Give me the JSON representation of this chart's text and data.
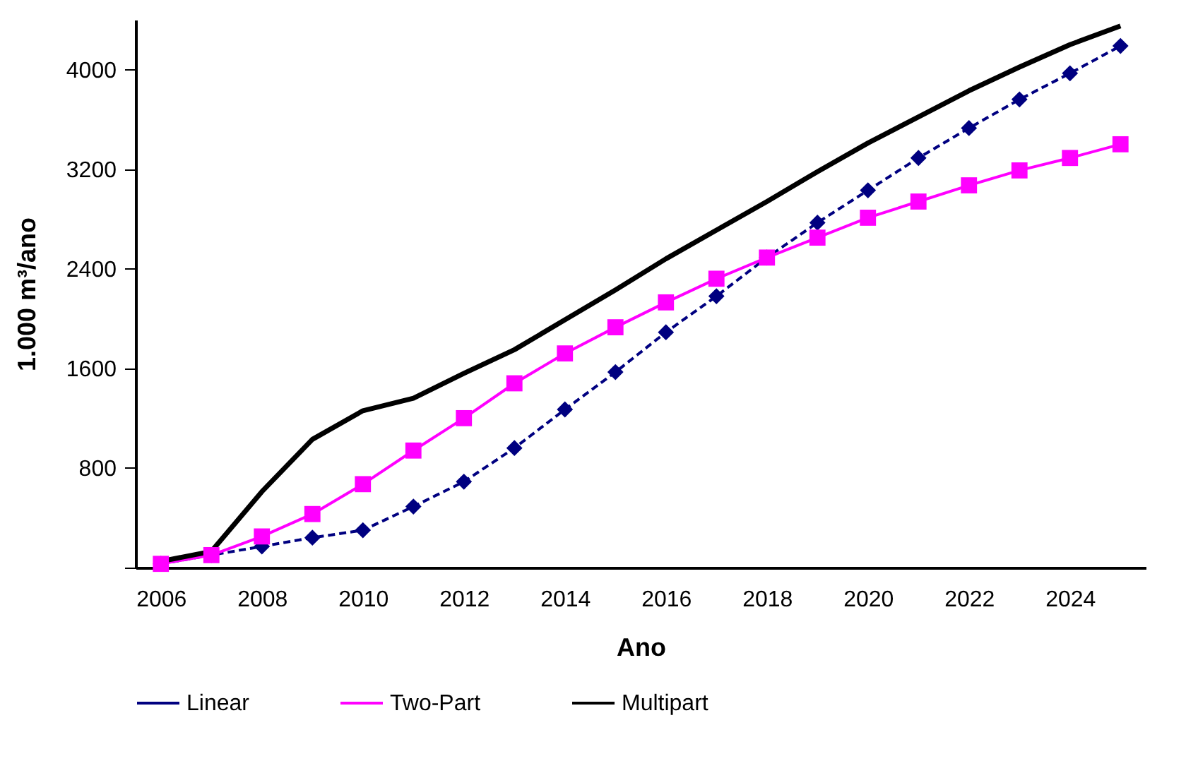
{
  "chart_data": {
    "type": "line",
    "xlabel": "Ano",
    "ylabel": "1.000 m³/ano",
    "x": [
      2006,
      2007,
      2008,
      2009,
      2010,
      2011,
      2012,
      2013,
      2014,
      2015,
      2016,
      2017,
      2018,
      2019,
      2020,
      2021,
      2022,
      2023,
      2024,
      2025
    ],
    "xlim": [
      2005.5,
      2025.5
    ],
    "xticks": [
      2006,
      2008,
      2010,
      2012,
      2014,
      2016,
      2018,
      2020,
      2022,
      2024
    ],
    "ylim": [
      0,
      4400
    ],
    "yticks": [
      {
        "value": 0,
        "label": null
      },
      800,
      1600,
      2400,
      3200,
      4000
    ],
    "grid": false,
    "legend": "bottom",
    "series": [
      {
        "name": "Linear",
        "color": "#000080",
        "marker": "diamond",
        "line_style": "dashed",
        "values": [
          30,
          100,
          170,
          240,
          300,
          490,
          690,
          960,
          1270,
          1570,
          1890,
          2180,
          2490,
          2770,
          3030,
          3290,
          3530,
          3760,
          3970,
          4190
        ]
      },
      {
        "name": "Two-Part",
        "color": "#ff00ff",
        "marker": "square",
        "line_style": "solid",
        "values": [
          30,
          100,
          250,
          430,
          670,
          940,
          1200,
          1480,
          1720,
          1930,
          2130,
          2320,
          2490,
          2650,
          2810,
          2940,
          3070,
          3190,
          3290,
          3400
        ]
      },
      {
        "name": "Multipart",
        "color": "#000000",
        "marker": "none",
        "line_style": "solid",
        "values": [
          50,
          130,
          610,
          1030,
          1260,
          1360,
          1560,
          1750,
          1990,
          2230,
          2480,
          2710,
          2940,
          3180,
          3410,
          3620,
          3830,
          4020,
          4200,
          4350
        ]
      }
    ]
  }
}
